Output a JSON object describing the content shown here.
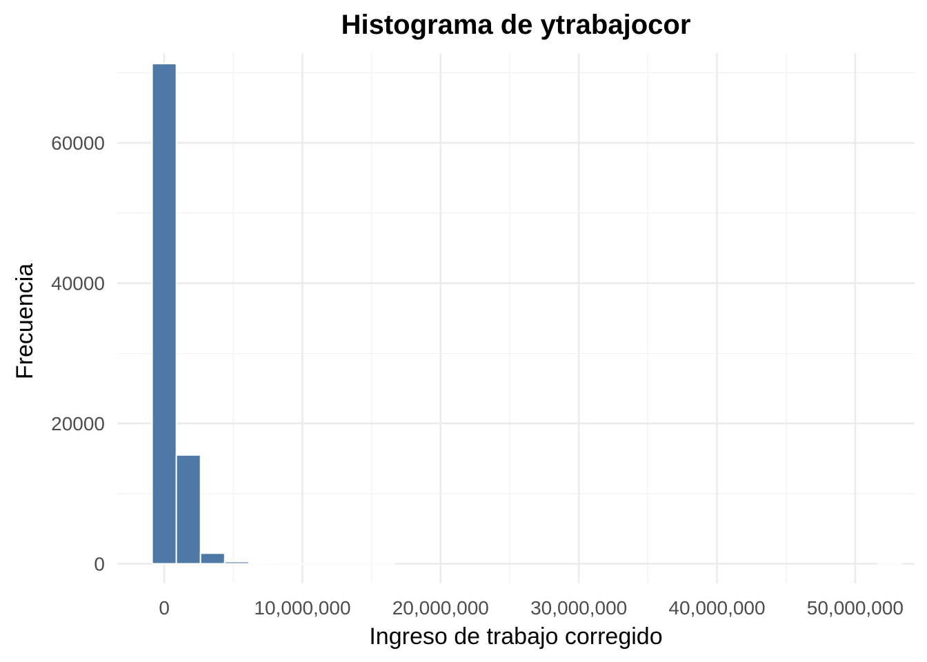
{
  "chart_data": {
    "type": "bar",
    "title": "Histograma de ytrabajocor",
    "xlabel": "Ingreso de trabajo corregido",
    "ylabel": "Frecuencia",
    "xlim": [
      -3400000,
      54300000
    ],
    "ylim": [
      -2800,
      72800
    ],
    "x_ticks": [
      0,
      10000000,
      20000000,
      30000000,
      40000000,
      50000000
    ],
    "x_tick_labels": [
      "0",
      "10,000,000",
      "20,000,000",
      "30,000,000",
      "40,000,000",
      "50,000,000"
    ],
    "y_ticks": [
      0,
      20000,
      40000,
      60000
    ],
    "y_tick_labels": [
      "0",
      "20000",
      "40000",
      "60000"
    ],
    "bin_width": 1750000,
    "bin_centers": [
      0,
      1750000,
      3500000,
      5250000,
      7000000,
      8750000,
      10500000,
      12250000,
      14000000,
      15750000,
      17500000,
      19250000,
      21000000,
      22750000,
      24500000,
      26250000,
      28000000,
      29750000,
      31500000,
      33250000,
      35000000,
      36750000,
      38500000,
      40250000,
      42000000,
      43750000,
      45500000,
      47250000,
      49000000,
      50750000,
      52500000
    ],
    "values": [
      71300,
      15500,
      1500,
      300,
      40,
      10,
      5,
      2,
      1,
      1,
      0,
      0,
      0,
      0,
      0,
      0,
      0,
      0,
      0,
      0,
      0,
      0,
      0,
      0,
      0,
      0,
      0,
      0,
      0,
      0,
      1
    ],
    "bar_color": "#4e79a7",
    "grid": true
  }
}
